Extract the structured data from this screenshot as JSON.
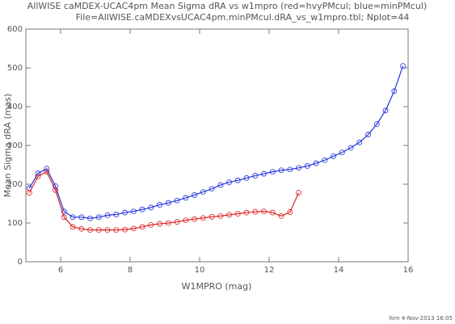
{
  "chart_data": {
    "type": "line",
    "title": "AllWISE caMDEX-UCAC4pm Mean Sigma dRA vs w1mpro (red=hvyPMcul; blue=minPMcul)",
    "subtitle": "File=AllWISE.caMDEXvsUCAC4pm.minPMcul.dRA_vs_w1mpro.tbl; Nplot=44",
    "x_label": "W1MPRO (mag)",
    "y_label": "Mean Sigma dRA (mas)",
    "footer": "him  4-Nov-2013 16:05",
    "xlim": [
      5,
      16
    ],
    "xticks": [
      6,
      8,
      10,
      12,
      14,
      16
    ],
    "ylim": [
      0,
      600
    ],
    "yticks": [
      0,
      100,
      200,
      300,
      400,
      500,
      600
    ],
    "series": [
      {
        "color": "#2233dd",
        "x": [
          5.1,
          5.35,
          5.6,
          5.85,
          6.1,
          6.35,
          6.6,
          6.85,
          7.1,
          7.35,
          7.6,
          7.85,
          8.1,
          8.35,
          8.6,
          8.85,
          9.1,
          9.35,
          9.6,
          9.85,
          10.1,
          10.35,
          10.6,
          10.85,
          11.1,
          11.35,
          11.6,
          11.85,
          12.1,
          12.35,
          12.6,
          12.85,
          13.1,
          13.35,
          13.6,
          13.85,
          14.1,
          14.35,
          14.6,
          14.85,
          15.1,
          15.35,
          15.6,
          15.85
        ],
        "values": [
          190,
          228,
          240,
          195,
          130,
          115,
          115,
          112,
          115,
          120,
          122,
          127,
          130,
          135,
          140,
          147,
          152,
          158,
          165,
          172,
          180,
          188,
          198,
          205,
          210,
          216,
          222,
          227,
          232,
          236,
          238,
          242,
          247,
          254,
          262,
          272,
          282,
          294,
          308,
          328,
          355,
          390,
          440,
          505
        ]
      },
      {
        "color": "#dd2222",
        "x": [
          5.1,
          5.35,
          5.6,
          5.85,
          6.1,
          6.35,
          6.6,
          6.85,
          7.1,
          7.35,
          7.6,
          7.85,
          8.1,
          8.35,
          8.6,
          8.85,
          9.1,
          9.35,
          9.6,
          9.85,
          10.1,
          10.35,
          10.6,
          10.85,
          11.1,
          11.35,
          11.6,
          11.85,
          12.1,
          12.35,
          12.6,
          12.85
        ],
        "values": [
          178,
          220,
          232,
          185,
          115,
          90,
          85,
          82,
          82,
          82,
          82,
          83,
          86,
          90,
          95,
          98,
          100,
          103,
          107,
          110,
          113,
          116,
          118,
          121,
          124,
          127,
          129,
          130,
          127,
          118,
          128,
          178
        ]
      }
    ]
  }
}
